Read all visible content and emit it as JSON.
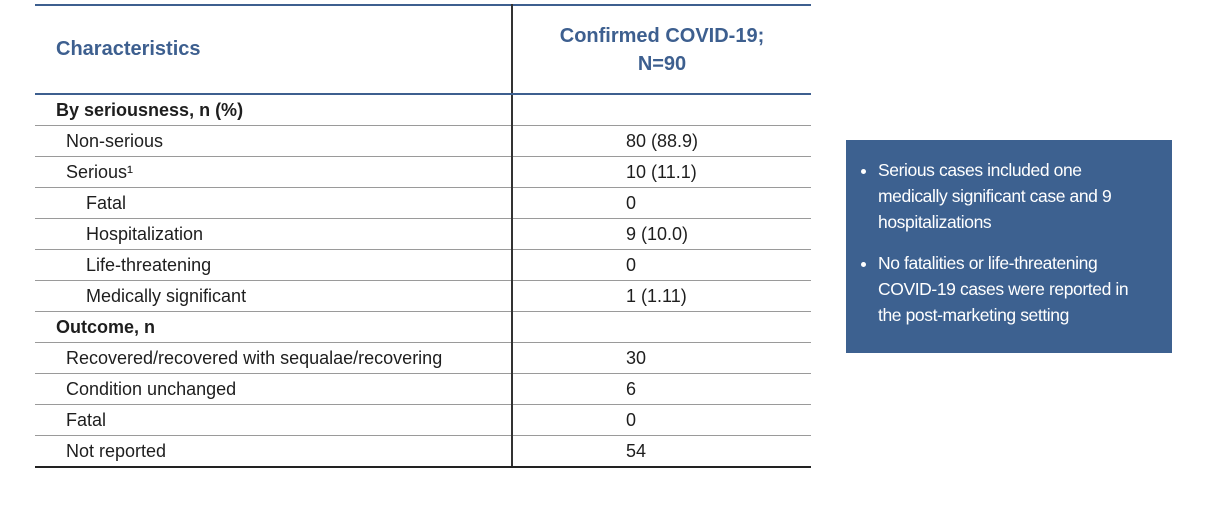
{
  "table": {
    "header": [
      "Characteristics",
      [
        "Confirmed COVID-19;",
        "N=90"
      ]
    ],
    "rows": [
      [
        "By seriousness, n (%)"
      ],
      [
        "Non-serious",
        "80 (88.9)"
      ],
      [
        "Serious¹",
        "10 (11.1)"
      ],
      [
        "Fatal",
        "0"
      ],
      [
        "Hospitalization",
        "9 (10.0)"
      ],
      [
        "Life-threatening",
        "0"
      ],
      [
        "Medically significant",
        "1 (1.11)"
      ],
      [
        "Outcome, n"
      ],
      [
        "Recovered/recovered with sequalae/recovering",
        "30"
      ],
      [
        "Condition unchanged",
        "6"
      ],
      [
        "Fatal",
        "0"
      ],
      [
        "Not reported",
        "54"
      ]
    ]
  },
  "notes": [
    "Serious cases included one medically significant case and 9 hospitalizations",
    "No fatalities or life-threatening COVID-19 cases were reported in the post-marketing setting"
  ]
}
